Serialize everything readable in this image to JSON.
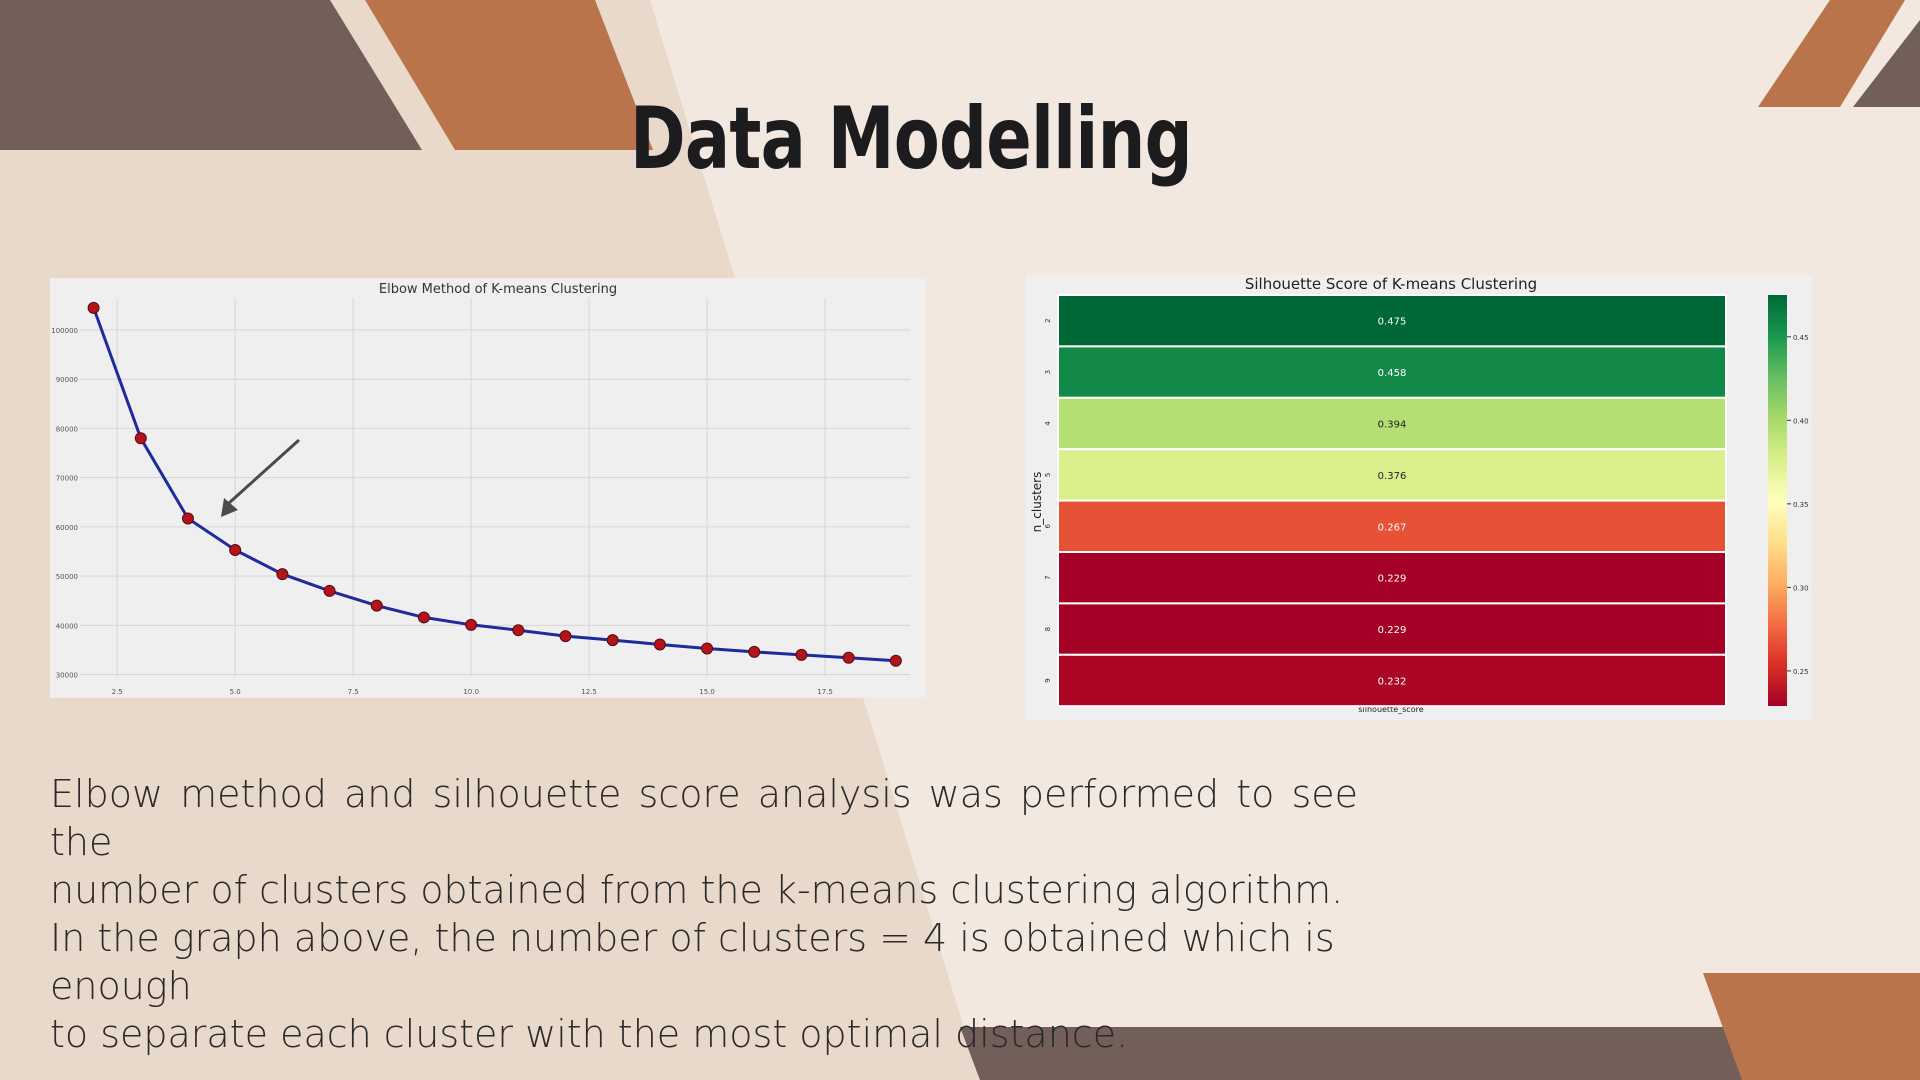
{
  "slide": {
    "title": "Data Modelling",
    "paragraph_lines": [
      "Elbow method and silhouette score analysis was performed to see the",
      "number of clusters obtained from the k-means clustering algorithm.",
      "In the graph above, the number of clusters = 4 is obtained which is enough",
      "to separate each cluster with the most optimal distance."
    ],
    "colors": {
      "background": "#f2e8df",
      "band": "#e8d9cb",
      "taupe": "#725f5a",
      "terracotta": "#b9744b",
      "title": "#1c1c1e"
    }
  },
  "chart_data": [
    {
      "type": "line",
      "title": "Elbow Method of K-means Clustering",
      "xlabel": "",
      "ylabel": "",
      "x": [
        2,
        3,
        4,
        5,
        6,
        7,
        8,
        9,
        10,
        11,
        12,
        13,
        14,
        15,
        16,
        17,
        18,
        19
      ],
      "series": [
        {
          "values": [
            104500,
            78000,
            61700,
            55300,
            50400,
            47000,
            44000,
            41600,
            40100,
            39000,
            37800,
            37000,
            36100,
            35300,
            34600,
            34000,
            33400,
            32800
          ]
        }
      ],
      "xlim": [
        1.5,
        19.3
      ],
      "ylim": [
        29500,
        106500
      ],
      "xticks": [
        2.5,
        5.0,
        7.5,
        10.0,
        12.5,
        15.0,
        17.5
      ],
      "xtick_labels": [
        "2.5",
        "5.0",
        "7.5",
        "10.0",
        "12.5",
        "15.0",
        "17.5"
      ],
      "yticks": [
        30000,
        40000,
        50000,
        60000,
        70000,
        80000,
        90000,
        100000
      ],
      "ytick_labels": [
        "30000",
        "40000",
        "50000",
        "60000",
        "70000",
        "80000",
        "90000",
        "100000"
      ],
      "grid": true,
      "line_color": "#1f2a9c",
      "marker_color": "#b3141c",
      "annotation": {
        "type": "arrow",
        "points_to_x": 4,
        "points_to_y": 61700
      }
    },
    {
      "type": "heatmap",
      "title": "Silhouette Score of K-means Clustering",
      "xlabel": "silhouette_score",
      "ylabel": "n_clusters",
      "rows": [
        "2",
        "3",
        "4",
        "5",
        "6",
        "7",
        "8",
        "9"
      ],
      "columns": [
        "silhouette_score"
      ],
      "values": [
        0.475,
        0.458,
        0.394,
        0.376,
        0.267,
        0.229,
        0.229,
        0.232
      ],
      "value_labels": [
        "0.475",
        "0.458",
        "0.394",
        "0.376",
        "0.267",
        "0.229",
        "0.229",
        "0.232"
      ],
      "colormap": "RdYlGn",
      "color_range": [
        0.229,
        0.475
      ],
      "colorbar_ticks": [
        0.25,
        0.3,
        0.35,
        0.4,
        0.45
      ],
      "colorbar_tick_labels": [
        "0.25",
        "0.30",
        "0.35",
        "0.40",
        "0.45"
      ]
    }
  ]
}
